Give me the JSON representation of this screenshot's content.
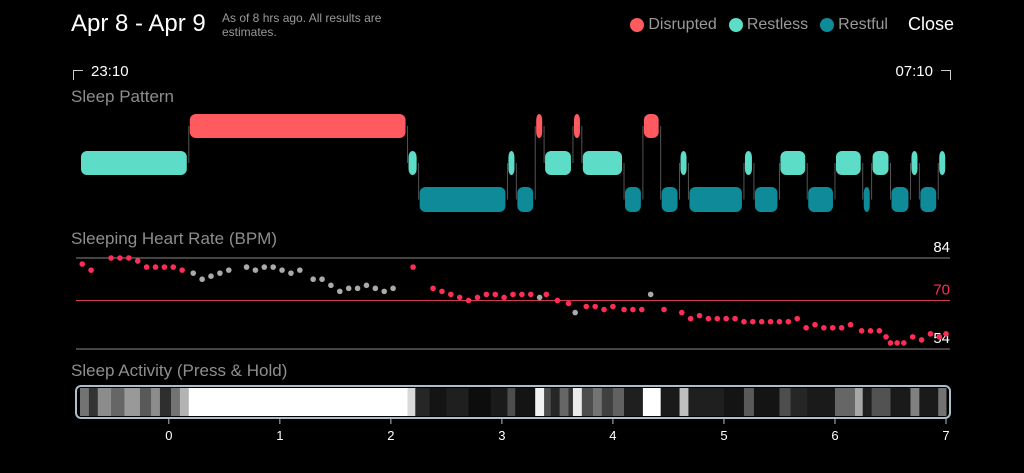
{
  "header": {
    "title": "Apr 8 - Apr 9",
    "note": "As of 8 hrs ago. All results are estimates.",
    "legend": [
      {
        "label": "Disrupted",
        "color": "#ff5a5f"
      },
      {
        "label": "Restless",
        "color": "#5ddcc8"
      },
      {
        "label": "Restful",
        "color": "#0e8a98"
      }
    ],
    "close_label": "Close"
  },
  "timeline": {
    "start": "23:10",
    "end": "07:10"
  },
  "sections": {
    "sleep_pattern": "Sleep Pattern",
    "heart_rate": "Sleeping Heart Rate (BPM)",
    "activity": "Sleep Activity (Press & Hold)"
  },
  "chart_data": [
    {
      "type": "timeline",
      "title": "Sleep Pattern",
      "x_range": [
        -0.8,
        7.0
      ],
      "levels": {
        "disrupted": "#ff5a5f",
        "restless": "#5ddcc8",
        "restful": "#0e8a98"
      },
      "segments": [
        {
          "state": "restless",
          "start": -0.8,
          "end": 0.18
        },
        {
          "state": "disrupted",
          "start": 0.18,
          "end": 2.15
        },
        {
          "state": "restless",
          "start": 2.15,
          "end": 2.25
        },
        {
          "state": "restful",
          "start": 2.25,
          "end": 3.05
        },
        {
          "state": "restless",
          "start": 3.05,
          "end": 3.13
        },
        {
          "state": "restful",
          "start": 3.13,
          "end": 3.3
        },
        {
          "state": "disrupted",
          "start": 3.3,
          "end": 3.38
        },
        {
          "state": "restless",
          "start": 3.38,
          "end": 3.64
        },
        {
          "state": "disrupted",
          "start": 3.64,
          "end": 3.72
        },
        {
          "state": "restless",
          "start": 3.72,
          "end": 4.1
        },
        {
          "state": "restful",
          "start": 4.1,
          "end": 4.27
        },
        {
          "state": "disrupted",
          "start": 4.27,
          "end": 4.43
        },
        {
          "state": "restful",
          "start": 4.43,
          "end": 4.6
        },
        {
          "state": "restless",
          "start": 4.6,
          "end": 4.68
        },
        {
          "state": "restful",
          "start": 4.68,
          "end": 5.18
        },
        {
          "state": "restless",
          "start": 5.18,
          "end": 5.27
        },
        {
          "state": "restful",
          "start": 5.27,
          "end": 5.5
        },
        {
          "state": "restless",
          "start": 5.5,
          "end": 5.75
        },
        {
          "state": "restful",
          "start": 5.75,
          "end": 6.0
        },
        {
          "state": "restless",
          "start": 6.0,
          "end": 6.25
        },
        {
          "state": "restful",
          "start": 6.25,
          "end": 6.33
        },
        {
          "state": "restless",
          "start": 6.33,
          "end": 6.5
        },
        {
          "state": "restful",
          "start": 6.5,
          "end": 6.68
        },
        {
          "state": "restless",
          "start": 6.68,
          "end": 6.76
        },
        {
          "state": "restful",
          "start": 6.76,
          "end": 6.93
        },
        {
          "state": "restless",
          "start": 6.93,
          "end": 7.0
        }
      ]
    },
    {
      "type": "scatter",
      "title": "Sleeping Heart Rate (BPM)",
      "xlim": [
        -0.8,
        7.0
      ],
      "ylim": [
        54,
        84
      ],
      "reference_lines": [
        {
          "value": 84,
          "label": "84",
          "color": "#888888"
        },
        {
          "value": 70,
          "label": "70",
          "color": "#d03a55"
        },
        {
          "value": 54,
          "label": "54",
          "color": "#888888"
        }
      ],
      "series": [
        {
          "color": "#ff2d55",
          "points": [
            [
              -0.78,
              82
            ],
            [
              -0.7,
              80
            ],
            [
              -0.52,
              84
            ],
            [
              -0.44,
              84
            ],
            [
              -0.36,
              84
            ],
            [
              -0.28,
              83
            ],
            [
              -0.2,
              81
            ],
            [
              -0.12,
              81
            ],
            [
              -0.04,
              81
            ],
            [
              0.04,
              81
            ],
            [
              0.12,
              80
            ],
            [
              2.2,
              81
            ],
            [
              2.38,
              74
            ],
            [
              2.46,
              73
            ],
            [
              2.54,
              72
            ],
            [
              2.62,
              71
            ],
            [
              2.7,
              70
            ],
            [
              2.78,
              71
            ],
            [
              2.86,
              72
            ],
            [
              2.94,
              72
            ],
            [
              3.02,
              71
            ],
            [
              3.1,
              72
            ],
            [
              3.18,
              72
            ],
            [
              3.26,
              72
            ],
            [
              3.4,
              72
            ],
            [
              3.5,
              70
            ],
            [
              3.6,
              69
            ],
            [
              3.76,
              68
            ],
            [
              3.84,
              68
            ],
            [
              3.92,
              67
            ],
            [
              4.0,
              68
            ],
            [
              4.1,
              67
            ],
            [
              4.18,
              67
            ],
            [
              4.26,
              67
            ],
            [
              4.46,
              67
            ],
            [
              4.62,
              66
            ],
            [
              4.7,
              64
            ],
            [
              4.78,
              65
            ],
            [
              4.86,
              64
            ],
            [
              4.94,
              64
            ],
            [
              5.02,
              64
            ],
            [
              5.1,
              64
            ],
            [
              5.18,
              63
            ],
            [
              5.26,
              63
            ],
            [
              5.34,
              63
            ],
            [
              5.42,
              63
            ],
            [
              5.5,
              63
            ],
            [
              5.58,
              63
            ],
            [
              5.66,
              64
            ],
            [
              5.74,
              61
            ],
            [
              5.82,
              62
            ],
            [
              5.9,
              61
            ],
            [
              5.98,
              61
            ],
            [
              6.06,
              61
            ],
            [
              6.14,
              62
            ],
            [
              6.24,
              60
            ],
            [
              6.32,
              60
            ],
            [
              6.4,
              60
            ],
            [
              6.46,
              58
            ],
            [
              6.5,
              56
            ],
            [
              6.56,
              56
            ],
            [
              6.62,
              56
            ],
            [
              6.7,
              58
            ],
            [
              6.78,
              57
            ],
            [
              6.86,
              59
            ],
            [
              6.94,
              58
            ],
            [
              7.0,
              59
            ]
          ]
        },
        {
          "color": "#aaaaaa",
          "points": [
            [
              0.22,
              79
            ],
            [
              0.3,
              77
            ],
            [
              0.38,
              78
            ],
            [
              0.46,
              79
            ],
            [
              0.54,
              80
            ],
            [
              0.7,
              81
            ],
            [
              0.78,
              80
            ],
            [
              0.86,
              81
            ],
            [
              0.94,
              81
            ],
            [
              1.02,
              80
            ],
            [
              1.1,
              79
            ],
            [
              1.18,
              80
            ],
            [
              1.3,
              77
            ],
            [
              1.38,
              77
            ],
            [
              1.46,
              75
            ],
            [
              1.54,
              73
            ],
            [
              1.62,
              74
            ],
            [
              1.7,
              74
            ],
            [
              1.78,
              75
            ],
            [
              1.86,
              74
            ],
            [
              1.94,
              73
            ],
            [
              2.02,
              74
            ],
            [
              3.34,
              71
            ],
            [
              3.66,
              66
            ],
            [
              4.34,
              72
            ]
          ]
        }
      ]
    },
    {
      "type": "heatmap",
      "title": "Sleep Activity (Press & Hold)",
      "x_ticks": [
        0,
        1,
        2,
        3,
        4,
        5,
        6,
        7
      ],
      "x_range": [
        -0.8,
        7.0
      ],
      "scale": "darker = restful, white = active",
      "bands": [
        {
          "start": -0.8,
          "end": -0.72,
          "level": 0.45
        },
        {
          "start": -0.72,
          "end": -0.64,
          "level": 0.2
        },
        {
          "start": -0.64,
          "end": -0.52,
          "level": 0.55
        },
        {
          "start": -0.52,
          "end": -0.4,
          "level": 0.4
        },
        {
          "start": -0.4,
          "end": -0.26,
          "level": 0.6
        },
        {
          "start": -0.26,
          "end": -0.16,
          "level": 0.35
        },
        {
          "start": -0.16,
          "end": -0.08,
          "level": 0.55
        },
        {
          "start": -0.08,
          "end": 0.02,
          "level": 0.18
        },
        {
          "start": 0.02,
          "end": 0.1,
          "level": 0.45
        },
        {
          "start": 0.1,
          "end": 0.18,
          "level": 0.7
        },
        {
          "start": 0.18,
          "end": 2.15,
          "level": 1.0
        },
        {
          "start": 2.15,
          "end": 2.22,
          "level": 0.85
        },
        {
          "start": 2.22,
          "end": 2.35,
          "level": 0.15
        },
        {
          "start": 2.35,
          "end": 2.5,
          "level": 0.08
        },
        {
          "start": 2.5,
          "end": 2.7,
          "level": 0.12
        },
        {
          "start": 2.7,
          "end": 2.9,
          "level": 0.05
        },
        {
          "start": 2.9,
          "end": 3.05,
          "level": 0.1
        },
        {
          "start": 3.05,
          "end": 3.12,
          "level": 0.3
        },
        {
          "start": 3.12,
          "end": 3.3,
          "level": 0.08
        },
        {
          "start": 3.3,
          "end": 3.38,
          "level": 0.95
        },
        {
          "start": 3.38,
          "end": 3.44,
          "level": 0.3
        },
        {
          "start": 3.44,
          "end": 3.52,
          "level": 0.15
        },
        {
          "start": 3.52,
          "end": 3.6,
          "level": 0.4
        },
        {
          "start": 3.6,
          "end": 3.64,
          "level": 0.2
        },
        {
          "start": 3.64,
          "end": 3.72,
          "level": 0.92
        },
        {
          "start": 3.72,
          "end": 3.82,
          "level": 0.3
        },
        {
          "start": 3.82,
          "end": 3.9,
          "level": 0.45
        },
        {
          "start": 3.9,
          "end": 4.0,
          "level": 0.25
        },
        {
          "start": 4.0,
          "end": 4.1,
          "level": 0.38
        },
        {
          "start": 4.1,
          "end": 4.27,
          "level": 0.12
        },
        {
          "start": 4.27,
          "end": 4.43,
          "level": 1.0
        },
        {
          "start": 4.43,
          "end": 4.6,
          "level": 0.1
        },
        {
          "start": 4.6,
          "end": 4.68,
          "level": 0.75
        },
        {
          "start": 4.68,
          "end": 5.0,
          "level": 0.12
        },
        {
          "start": 5.0,
          "end": 5.18,
          "level": 0.08
        },
        {
          "start": 5.18,
          "end": 5.27,
          "level": 0.35
        },
        {
          "start": 5.27,
          "end": 5.5,
          "level": 0.08
        },
        {
          "start": 5.5,
          "end": 5.6,
          "level": 0.3
        },
        {
          "start": 5.6,
          "end": 5.75,
          "level": 0.15
        },
        {
          "start": 5.75,
          "end": 6.0,
          "level": 0.1
        },
        {
          "start": 6.0,
          "end": 6.18,
          "level": 0.4
        },
        {
          "start": 6.18,
          "end": 6.25,
          "level": 0.65
        },
        {
          "start": 6.25,
          "end": 6.33,
          "level": 0.12
        },
        {
          "start": 6.33,
          "end": 6.5,
          "level": 0.32
        },
        {
          "start": 6.5,
          "end": 6.68,
          "level": 0.1
        },
        {
          "start": 6.68,
          "end": 6.76,
          "level": 0.5
        },
        {
          "start": 6.76,
          "end": 6.93,
          "level": 0.1
        },
        {
          "start": 6.93,
          "end": 7.0,
          "level": 0.45
        }
      ]
    }
  ]
}
